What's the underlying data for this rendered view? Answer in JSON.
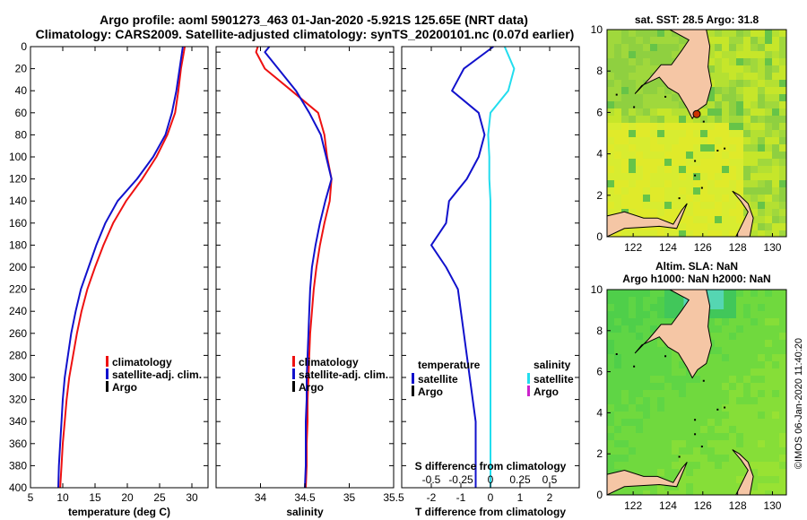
{
  "header": {
    "title_line1": "Argo profile: aoml 5901273_463 01-Jan-2020 -5.921S 125.65E (NRT data)",
    "title_line2": "Climatology: CARS2009. Satellite-adjusted climatology: synTS_20200101.nc (0.07d earlier)"
  },
  "credit": "©IMOS 06-Jan-2020 11:40:20",
  "colors": {
    "climatology": "#ee1111",
    "satellite": "#1111cc",
    "argo": "#000000",
    "sal_satellite": "#22ddee",
    "sal_argo": "#cc22cc",
    "map_land": "#f5c6a5",
    "argo_marker": "#cc3300"
  },
  "chart_data": [
    {
      "id": "temperature",
      "type": "line",
      "xlabel": "temperature (deg C)",
      "ylabel": "",
      "xlim": [
        5,
        32.5
      ],
      "ylim": [
        400,
        0
      ],
      "x_ticks": [
        "5",
        "10",
        "15",
        "20",
        "25",
        "30"
      ],
      "x_tick_values": [
        5,
        10,
        15,
        20,
        25,
        30
      ],
      "y_ticks": [
        0,
        20,
        40,
        60,
        80,
        100,
        120,
        140,
        160,
        180,
        200,
        220,
        240,
        260,
        280,
        300,
        320,
        340,
        360,
        380,
        400
      ],
      "depth": [
        0,
        20,
        40,
        60,
        80,
        100,
        120,
        140,
        160,
        180,
        200,
        220,
        240,
        260,
        280,
        300,
        320,
        340,
        360,
        380,
        400
      ],
      "legend": [
        "climatology",
        "satellite-adj. clim.",
        "Argo"
      ],
      "series": [
        {
          "name": "climatology",
          "color": "#ee1111",
          "values": [
            28.9,
            28.3,
            27.9,
            27.4,
            26.2,
            24.5,
            22.3,
            19.8,
            17.8,
            16.3,
            15.0,
            13.8,
            12.9,
            12.2,
            11.6,
            11.0,
            10.6,
            10.3,
            10.0,
            9.8,
            9.6
          ]
        },
        {
          "name": "satellite-adj. clim.",
          "color": "#1111cc",
          "values": [
            28.6,
            28.1,
            27.6,
            26.9,
            25.9,
            24.0,
            21.5,
            18.5,
            16.6,
            15.2,
            14.0,
            12.8,
            12.0,
            11.3,
            10.8,
            10.3,
            10.0,
            9.8,
            9.6,
            9.4,
            9.3
          ]
        }
      ]
    },
    {
      "id": "salinity",
      "type": "line",
      "xlabel": "salinity",
      "xlim": [
        33.5,
        35.5
      ],
      "ylim": [
        400,
        0
      ],
      "x_ticks": [
        "34",
        "34.5",
        "35",
        "35.5"
      ],
      "x_tick_values": [
        34,
        34.5,
        35,
        35.5
      ],
      "depth": [
        0,
        5,
        20,
        40,
        60,
        80,
        100,
        120,
        140,
        160,
        180,
        200,
        220,
        240,
        260,
        280,
        300,
        320,
        340,
        360,
        380,
        400
      ],
      "legend": [
        "climatology",
        "satellite-adj. clim.",
        "Argo"
      ],
      "series": [
        {
          "name": "climatology",
          "color": "#ee1111",
          "values": [
            33.97,
            33.95,
            34.05,
            34.35,
            34.65,
            34.72,
            34.75,
            34.8,
            34.78,
            34.72,
            34.67,
            34.63,
            34.6,
            34.58,
            34.56,
            34.55,
            34.54,
            34.53,
            34.53,
            34.52,
            34.52,
            34.51
          ]
        },
        {
          "name": "satellite-adj. clim.",
          "color": "#1111cc",
          "values": [
            34.1,
            34.05,
            34.2,
            34.4,
            34.55,
            34.68,
            34.74,
            34.8,
            34.73,
            34.67,
            34.62,
            34.58,
            34.56,
            34.55,
            34.54,
            34.53,
            34.52,
            34.52,
            34.51,
            34.51,
            34.51,
            34.5
          ]
        }
      ]
    },
    {
      "id": "difference",
      "type": "line",
      "xlabel": "T difference from climatology",
      "x2label": "S difference from climatology",
      "xlim": [
        -3,
        3
      ],
      "ylim": [
        400,
        0
      ],
      "x_ticks": [
        "-2",
        "-1",
        "0",
        "1",
        "2"
      ],
      "x_tick_values": [
        -2,
        -1,
        0,
        1,
        2
      ],
      "x2_ticks": [
        "-0.5",
        "-0.25",
        "0",
        "0.25",
        "0.5"
      ],
      "x2_tick_values": [
        -0.5,
        -0.25,
        0,
        0.25,
        0.5
      ],
      "depth": [
        0,
        20,
        40,
        60,
        80,
        100,
        120,
        140,
        160,
        180,
        200,
        220,
        240,
        260,
        280,
        300,
        320,
        340,
        360,
        380,
        400
      ],
      "legend": {
        "temperature_title": "temperature",
        "salinity_title": "salinity",
        "satellite": "satellite",
        "argo": "Argo"
      },
      "series": [
        {
          "name": "temperature satellite",
          "color": "#1111cc",
          "axis": "T",
          "values": [
            0.1,
            -0.9,
            -1.3,
            -0.4,
            -0.2,
            -0.4,
            -0.8,
            -1.4,
            -1.5,
            -2.0,
            -1.5,
            -1.1,
            -1.0,
            -0.9,
            -0.8,
            -0.7,
            -0.6,
            -0.5,
            -0.5,
            -0.5,
            -0.5
          ]
        },
        {
          "name": "salinity satellite",
          "color": "#22ddee",
          "axis": "S",
          "values": [
            0.12,
            0.2,
            0.15,
            0.0,
            -0.02,
            -0.01,
            -0.01,
            0.0,
            0.0,
            0.0,
            0.0,
            0.0,
            0.0,
            0.0,
            0.0,
            0.0,
            0.0,
            0.0,
            0.0,
            0.0,
            0.0
          ]
        }
      ]
    },
    {
      "id": "map_sst",
      "type": "heatmap",
      "title": "sat. SST: 28.5 Argo: 31.8",
      "xlim": [
        120.5,
        130.8
      ],
      "ylim": [
        0,
        10
      ],
      "x_ticks": [
        "122",
        "124",
        "126",
        "128",
        "130"
      ],
      "x_tick_values": [
        122,
        124,
        126,
        128,
        130
      ],
      "y_ticks": [
        "0",
        "2",
        "4",
        "6",
        "8",
        "10"
      ],
      "y_tick_values": [
        0,
        2,
        4,
        6,
        8,
        10
      ],
      "argo_position": {
        "lon": 125.65,
        "lat": 5.921
      }
    },
    {
      "id": "map_sla",
      "type": "heatmap",
      "title_line1": "Altim. SLA: NaN",
      "title_line2": "Argo h1000: NaN h2000: NaN",
      "xlim": [
        120.5,
        130.8
      ],
      "ylim": [
        0,
        10
      ],
      "x_ticks": [
        "122",
        "124",
        "126",
        "128",
        "130"
      ],
      "x_tick_values": [
        122,
        124,
        126,
        128,
        130
      ],
      "y_ticks": [
        "0",
        "2",
        "4",
        "6",
        "8",
        "10"
      ],
      "y_tick_values": [
        0,
        2,
        4,
        6,
        8,
        10
      ]
    }
  ]
}
